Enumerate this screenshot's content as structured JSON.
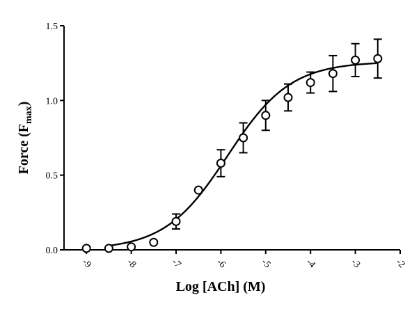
{
  "chart_data": {
    "type": "scatter",
    "title": "",
    "xlabel": "Log [ACh] (M)",
    "ylabel": {
      "main": "Force (F",
      "subscript": "max",
      "close": ")"
    },
    "xlim": [
      -9.5,
      -2
    ],
    "ylim": [
      0,
      1.5
    ],
    "xticks": [
      -9,
      -8,
      -7,
      -6,
      -5,
      -4,
      -3,
      -2
    ],
    "xtick_labels": [
      "-9",
      "-8",
      "-7",
      "-6",
      "-5",
      "-4",
      "-3",
      "-2"
    ],
    "yticks": [
      0,
      0.5,
      1.0,
      1.5
    ],
    "ytick_labels": [
      "0.0",
      "0.5",
      "1.0",
      "1.5"
    ],
    "grid": false,
    "legend": "none",
    "series": [
      {
        "x": [
          -9,
          -8.5,
          -8,
          -7.5,
          -7,
          -6.5,
          -6,
          -5.5,
          -5,
          -4.5,
          -4,
          -3.5,
          -3,
          -2.5
        ],
        "y": [
          0.01,
          0.01,
          0.02,
          0.05,
          0.19,
          0.4,
          0.58,
          0.75,
          0.9,
          1.02,
          1.12,
          1.18,
          1.27,
          1.28
        ],
        "error": [
          0,
          0,
          0,
          0,
          0.05,
          0,
          0.09,
          0.1,
          0.1,
          0.09,
          0.07,
          0.12,
          0.11,
          0.13
        ],
        "marker": "open-circle"
      }
    ],
    "fit_curve": {
      "type": "sigmoidal",
      "bottom": 0,
      "top": 1.26,
      "logEC50": -5.85,
      "hill": 0.62
    }
  }
}
